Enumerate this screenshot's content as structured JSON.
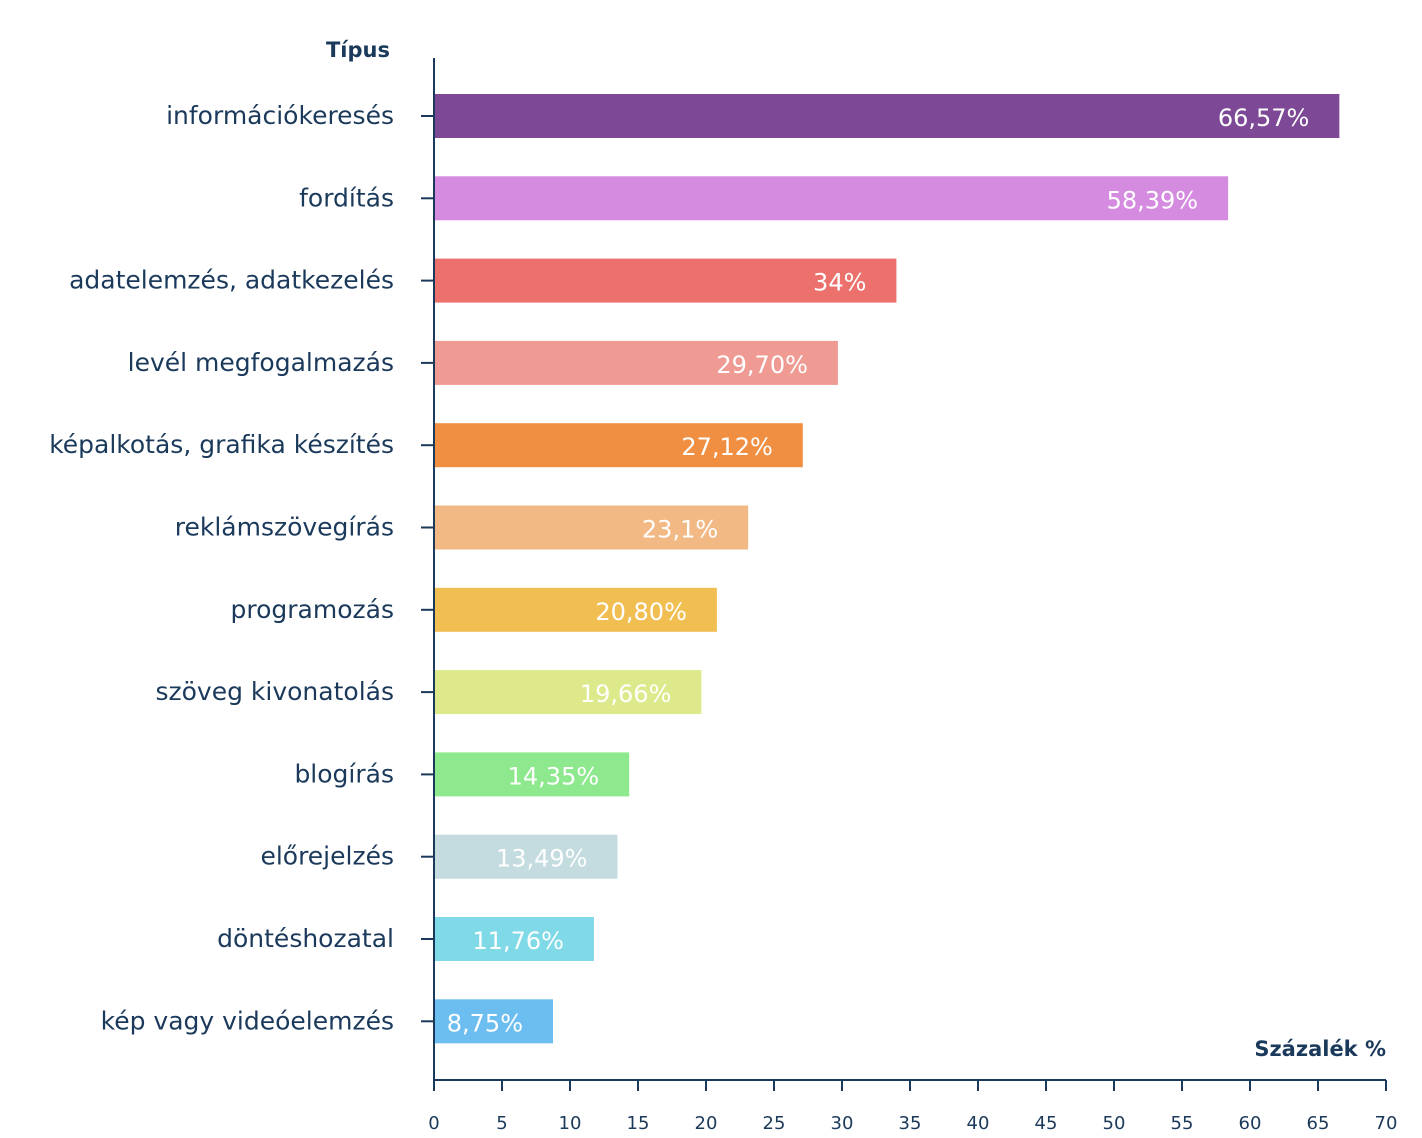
{
  "chart_data": {
    "type": "bar",
    "orientation": "horizontal",
    "title": "",
    "ylabel": "Típus",
    "xlabel": "Százalék %",
    "xlim": [
      0,
      70
    ],
    "xticks": [
      0,
      5,
      10,
      15,
      20,
      25,
      30,
      35,
      40,
      45,
      50,
      55,
      60,
      65,
      70
    ],
    "grid": false,
    "categories": [
      "információkeresés",
      "fordítás",
      "adatelemzés, adatkezelés",
      "levél megfogalmazás",
      "képalkotás, grafika készítés",
      "reklámszövegírás",
      "programozás",
      "szöveg kivonatolás",
      "blogírás",
      "előrejelzés",
      "döntéshozatal",
      "kép vagy videóelemzés"
    ],
    "values": [
      66.57,
      58.39,
      34,
      29.7,
      27.12,
      23.1,
      20.8,
      19.66,
      14.35,
      13.49,
      11.76,
      8.75
    ],
    "data_labels": [
      "66,57%",
      "58,39%",
      "34%",
      "29,70%",
      "27,12%",
      "23,1%",
      "20,80%",
      "19,66%",
      "14,35%",
      "13,49%",
      "11,76%",
      "8,75%"
    ],
    "colors": [
      "#7d4997",
      "#d58be0",
      "#ec716d",
      "#ef9b94",
      "#f08f42",
      "#f2b985",
      "#f1be52",
      "#dde98a",
      "#8ee88d",
      "#c4dcdf",
      "#7fd9e6",
      "#6cbdf0"
    ]
  }
}
